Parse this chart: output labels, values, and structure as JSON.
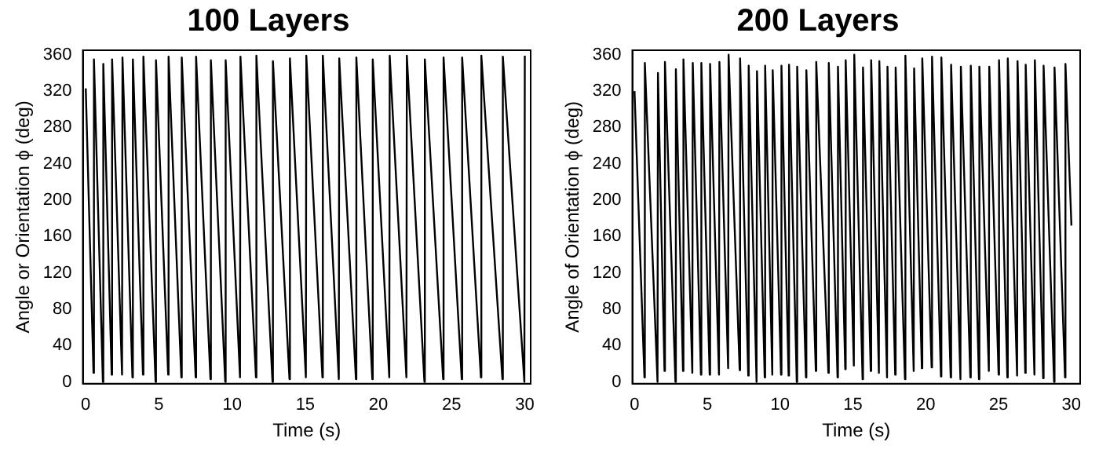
{
  "chart_data": [
    {
      "type": "line",
      "title": "100 Layers",
      "xlabel": "Time (s)",
      "ylabel": "Angle or Orientation ϕ (deg)",
      "xlim": [
        -0.2,
        30.4
      ],
      "xticks": [
        0,
        5,
        10,
        15,
        20,
        25,
        30
      ],
      "ylim": [
        -2,
        365
      ],
      "yticks": [
        0,
        40,
        80,
        120,
        160,
        200,
        240,
        280,
        320,
        360
      ],
      "marker": "none",
      "series": [
        {
          "color": "#000000",
          "x": [
            0,
            0.53,
            0.56,
            1.17,
            1.2,
            1.77,
            1.8,
            2.48,
            2.51,
            3.19,
            3.22,
            3.91,
            3.94,
            4.77,
            4.8,
            5.63,
            5.66,
            6.53,
            6.56,
            7.51,
            7.54,
            8.52,
            8.55,
            9.53,
            9.56,
            10.54,
            10.57,
            11.63,
            11.66,
            12.76,
            12.79,
            13.92,
            13.95,
            15.04,
            15.07,
            16.17,
            16.2,
            17.29,
            17.32,
            18.46,
            18.49,
            19.58,
            19.61,
            20.74,
            20.77,
            21.91,
            21.94,
            23.14,
            23.17,
            24.42,
            24.45,
            25.69,
            25.72,
            27.0,
            27.03,
            28.47,
            28.5,
            29.97,
            30
          ],
          "values": [
            323,
            10,
            355,
            0,
            350,
            8,
            355,
            8,
            357,
            5,
            355,
            8,
            358,
            0,
            354,
            8,
            358,
            5,
            357,
            5,
            358,
            3,
            354,
            0,
            354,
            5,
            358,
            5,
            359,
            0,
            353,
            3,
            356,
            5,
            359,
            5,
            359,
            3,
            356,
            3,
            357,
            3,
            355,
            5,
            359,
            5,
            359,
            0,
            355,
            3,
            357,
            3,
            357,
            5,
            359,
            3,
            358,
            0,
            359
          ]
        }
      ]
    },
    {
      "type": "line",
      "title": "200 Layers",
      "xlabel": "Time (s)",
      "ylabel": "Angle of Orientation ϕ (deg)",
      "xlim": [
        -0.15,
        30.6
      ],
      "xticks": [
        0,
        5,
        10,
        15,
        20,
        25,
        30
      ],
      "ylim": [
        -2,
        365
      ],
      "yticks": [
        0,
        40,
        80,
        120,
        160,
        200,
        240,
        280,
        320,
        360
      ],
      "marker": "none",
      "series": [
        {
          "color": "#000000",
          "x": [
            0,
            0.68,
            0.71,
            1.58,
            1.61,
            2.06,
            2.09,
            2.81,
            2.84,
            3.33,
            3.36,
            3.97,
            4.0,
            4.56,
            4.59,
            5.16,
            5.19,
            5.8,
            5.83,
            6.43,
            6.46,
            7.22,
            7.25,
            7.81,
            7.84,
            8.38,
            8.41,
            8.94,
            8.97,
            9.46,
            9.49,
            10.06,
            10.09,
            10.58,
            10.61,
            11.14,
            11.17,
            11.77,
            11.8,
            12.45,
            12.48,
            13.31,
            13.34,
            13.94,
            13.97,
            14.47,
            14.5,
            15.06,
            15.09,
            15.66,
            15.69,
            16.22,
            16.25,
            16.78,
            16.81,
            17.34,
            17.37,
            17.9,
            17.93,
            18.57,
            18.6,
            19.17,
            19.2,
            19.73,
            19.76,
            20.4,
            20.43,
            21.04,
            21.07,
            21.71,
            21.74,
            22.38,
            22.41,
            23.06,
            23.09,
            23.65,
            23.68,
            24.33,
            24.36,
            25.0,
            25.03,
            25.6,
            25.63,
            26.27,
            26.3,
            26.83,
            26.86,
            27.46,
            27.49,
            28.06,
            28.09,
            28.81,
            28.84,
            29.56,
            29.59,
            30
          ],
          "values": [
            320,
            5,
            351,
            0,
            340,
            12,
            352,
            0,
            344,
            12,
            355,
            10,
            351,
            8,
            351,
            8,
            350,
            8,
            352,
            15,
            360,
            13,
            356,
            7,
            348,
            0,
            342,
            5,
            348,
            8,
            343,
            8,
            348,
            7,
            349,
            0,
            347,
            5,
            343,
            12,
            352,
            10,
            351,
            5,
            347,
            14,
            354,
            18,
            360,
            3,
            346,
            12,
            354,
            10,
            353,
            5,
            347,
            8,
            346,
            3,
            359,
            12,
            345,
            15,
            356,
            16,
            358,
            6,
            357,
            5,
            349,
            3,
            347,
            5,
            348,
            3,
            347,
            12,
            347,
            8,
            354,
            5,
            356,
            7,
            353,
            10,
            349,
            8,
            354,
            4,
            348,
            0,
            346,
            5,
            350,
            172
          ]
        }
      ]
    }
  ]
}
